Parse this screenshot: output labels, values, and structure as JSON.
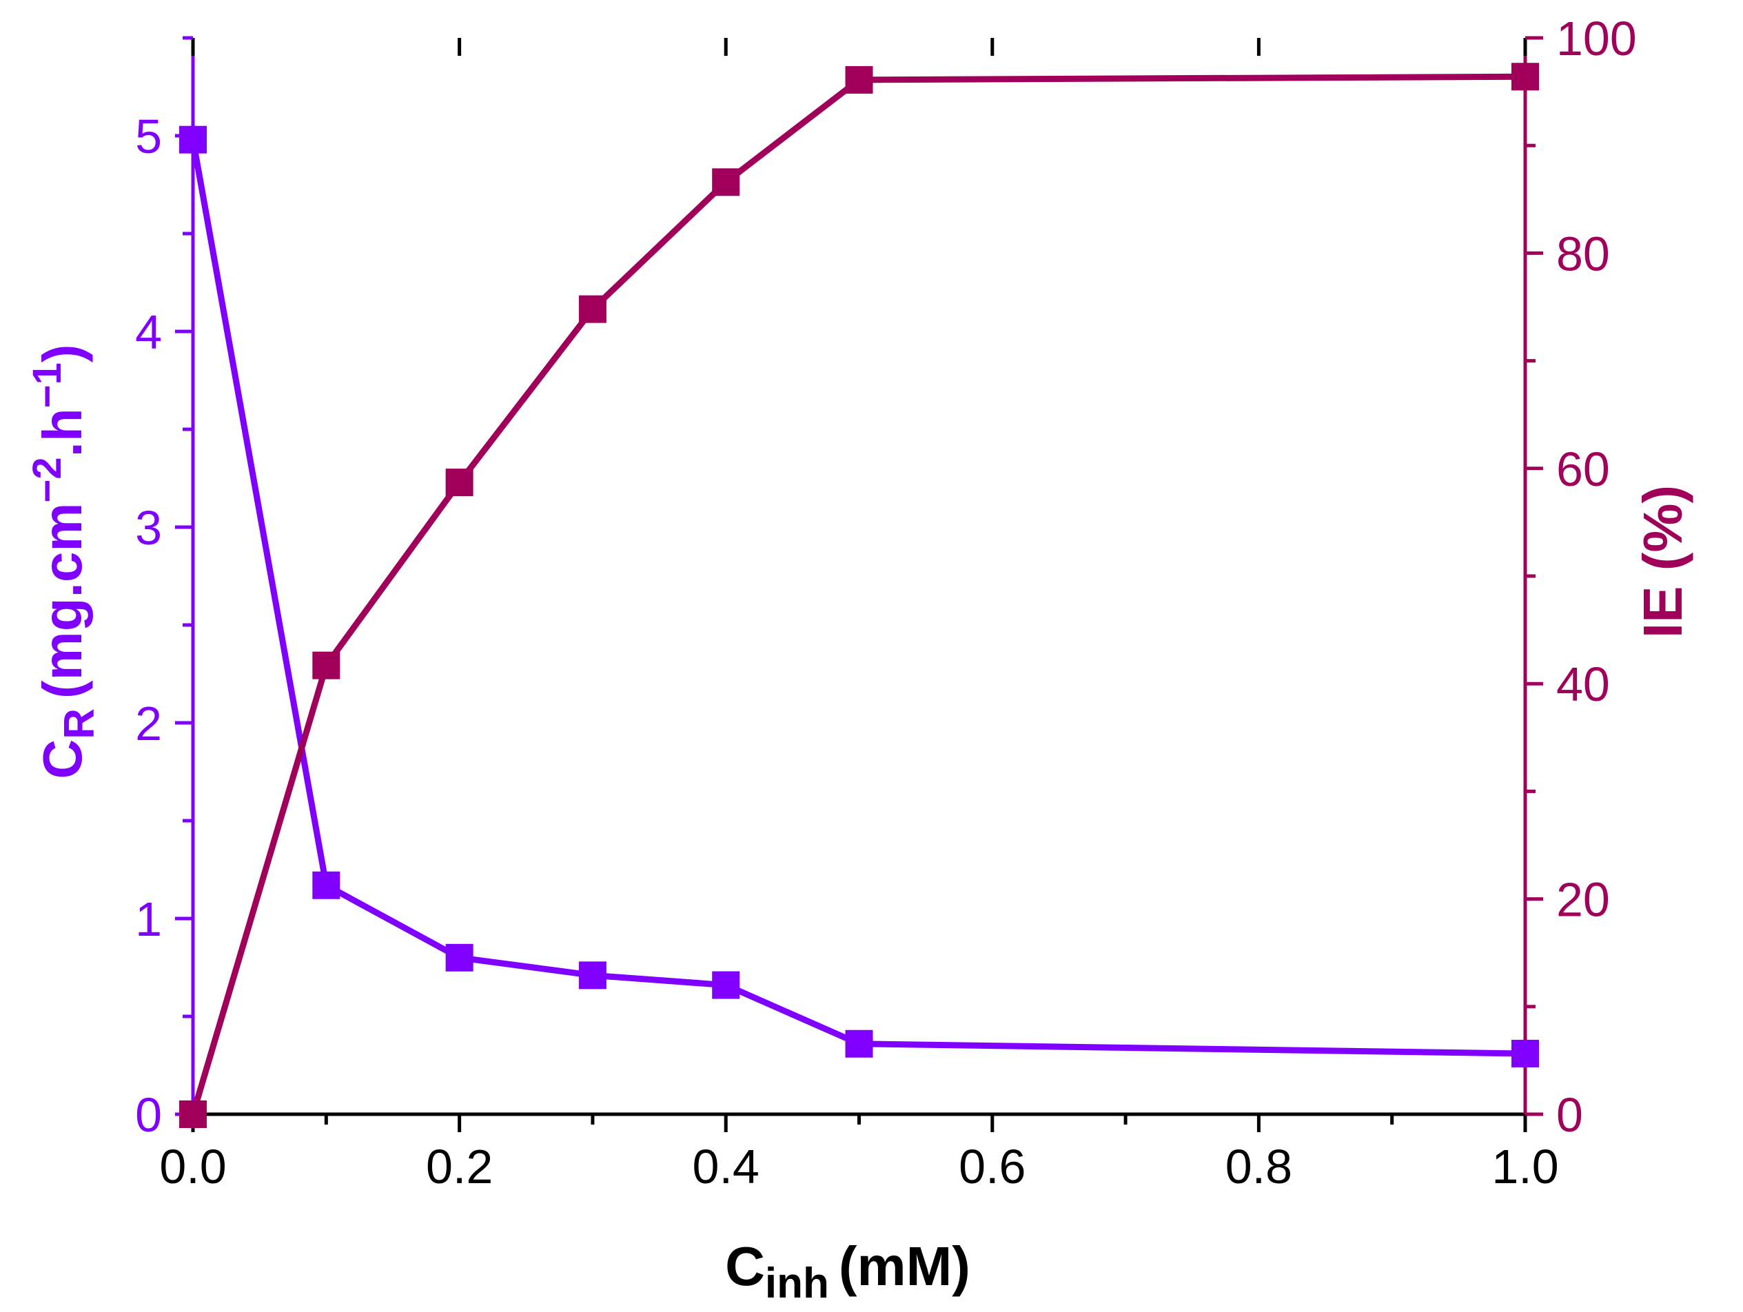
{
  "chart_data": {
    "type": "line",
    "title": "",
    "xlabel": {
      "main": "C",
      "sub": "inh",
      "suffix": "(mM)"
    },
    "ylabel_left": {
      "main": "C",
      "sub": "R",
      "suffix": "(mg.cm",
      "exp1": "−2",
      "mid": ".h",
      "exp2": "−1",
      "end": ")"
    },
    "ylabel_right": "IE (%)",
    "xlim": [
      0,
      1
    ],
    "ylim_left": [
      0,
      5.5
    ],
    "ylim_right": [
      0,
      100
    ],
    "x_ticks": [
      "0.0",
      "0.2",
      "0.4",
      "0.6",
      "0.8",
      "1.0"
    ],
    "y_left_ticks": [
      "0",
      "1",
      "2",
      "3",
      "4",
      "5"
    ],
    "y_right_ticks": [
      "0",
      "20",
      "40",
      "60",
      "80",
      "100"
    ],
    "grid": false,
    "series": [
      {
        "name": "CR",
        "axis": "left",
        "color": "#8000FF",
        "x": [
          0,
          0.1,
          0.2,
          0.3,
          0.4,
          0.5,
          1.0
        ],
        "values": [
          4.98,
          1.17,
          0.8,
          0.71,
          0.66,
          0.36,
          0.31
        ]
      },
      {
        "name": "IE",
        "axis": "right",
        "color": "#A0005A",
        "x": [
          0,
          0.1,
          0.2,
          0.3,
          0.4,
          0.5,
          1.0
        ],
        "values": [
          0,
          41.7,
          58.7,
          74.8,
          86.6,
          96.1,
          96.4
        ]
      }
    ]
  }
}
